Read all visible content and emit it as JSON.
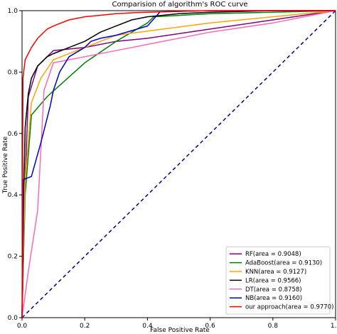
{
  "chart_data": {
    "type": "line",
    "title": "Comparision of algorithm's ROC curve",
    "xlabel": "False Positive Rate",
    "ylabel": "True Positive Rate",
    "xlim": [
      0.0,
      1.0
    ],
    "ylim": [
      0.0,
      1.0
    ],
    "xticks": [
      "0.0",
      "0.2",
      "0.4",
      "0.6",
      "0.8",
      "1.0"
    ],
    "yticks": [
      "0.0",
      "0.2",
      "0.4",
      "0.6",
      "0.8",
      "1.0"
    ],
    "grid": false,
    "legend_position": "bottom-right",
    "diagonal": {
      "style": "dashed",
      "color": "#00008b",
      "x": [
        0,
        1
      ],
      "y": [
        0,
        1
      ]
    },
    "series": [
      {
        "name": "RF(area = 0.9048)",
        "color": "#800080",
        "x": [
          0,
          0.01,
          0.02,
          0.05,
          0.1,
          0.2,
          0.3,
          0.4,
          0.6,
          0.8,
          1.0
        ],
        "y": [
          0,
          0.45,
          0.72,
          0.82,
          0.87,
          0.88,
          0.9,
          0.91,
          0.94,
          0.97,
          1.0
        ]
      },
      {
        "name": "AdaBoost(area = 0.9130)",
        "color": "#008000",
        "x": [
          0,
          0.01,
          0.03,
          0.08,
          0.2,
          0.3,
          0.4,
          0.42,
          0.6,
          1.0
        ],
        "y": [
          0,
          0.4,
          0.66,
          0.72,
          0.83,
          0.9,
          0.96,
          0.98,
          0.99,
          1.0
        ]
      },
      {
        "name": "KNN(area = 0.9127)",
        "color": "#ffa500",
        "x": [
          0,
          0.01,
          0.03,
          0.06,
          0.1,
          0.2,
          0.3,
          0.45,
          0.6,
          0.8,
          1.0
        ],
        "y": [
          0,
          0.45,
          0.7,
          0.78,
          0.84,
          0.88,
          0.92,
          0.94,
          0.96,
          0.98,
          1.0
        ]
      },
      {
        "name": "LR(area = 0.9566)",
        "color": "#000000",
        "x": [
          0,
          0.005,
          0.01,
          0.02,
          0.03,
          0.05,
          0.08,
          0.1,
          0.15,
          0.2,
          0.25,
          0.3,
          0.35,
          0.4,
          0.5,
          0.6,
          0.8,
          1.0
        ],
        "y": [
          0,
          0.4,
          0.62,
          0.73,
          0.78,
          0.82,
          0.85,
          0.86,
          0.88,
          0.9,
          0.93,
          0.95,
          0.97,
          0.98,
          0.99,
          0.995,
          1.0,
          1.0
        ]
      },
      {
        "name": "DT(area = 0.8758)",
        "color": "#ff69b4",
        "x": [
          0,
          0.02,
          0.05,
          0.07,
          0.1,
          0.2,
          0.3,
          0.4,
          0.6,
          0.8,
          1.0
        ],
        "y": [
          0,
          0.15,
          0.35,
          0.74,
          0.83,
          0.85,
          0.87,
          0.89,
          0.93,
          0.96,
          1.0
        ]
      },
      {
        "name": "NB(area = 0.9160)",
        "color": "#0000cd",
        "x": [
          0,
          0.005,
          0.03,
          0.06,
          0.08,
          0.09,
          0.1,
          0.12,
          0.15,
          0.2,
          0.22,
          0.25,
          0.3,
          0.4,
          0.44,
          0.6,
          1.0
        ],
        "y": [
          0,
          0.45,
          0.46,
          0.57,
          0.65,
          0.69,
          0.74,
          0.8,
          0.85,
          0.88,
          0.9,
          0.91,
          0.92,
          0.95,
          0.996,
          1.0,
          1.0
        ]
      },
      {
        "name": "our approach(area = 0.9770)",
        "color": "#ff0000",
        "x": [
          0,
          0.003,
          0.01,
          0.02,
          0.03,
          0.05,
          0.08,
          0.1,
          0.15,
          0.2,
          0.25,
          0.3,
          0.35,
          0.4,
          0.5,
          0.6,
          0.8,
          1.0
        ],
        "y": [
          0,
          0.78,
          0.84,
          0.86,
          0.88,
          0.91,
          0.94,
          0.95,
          0.97,
          0.98,
          0.985,
          0.99,
          0.993,
          0.995,
          0.998,
          1.0,
          1.0,
          1.0
        ]
      }
    ]
  }
}
